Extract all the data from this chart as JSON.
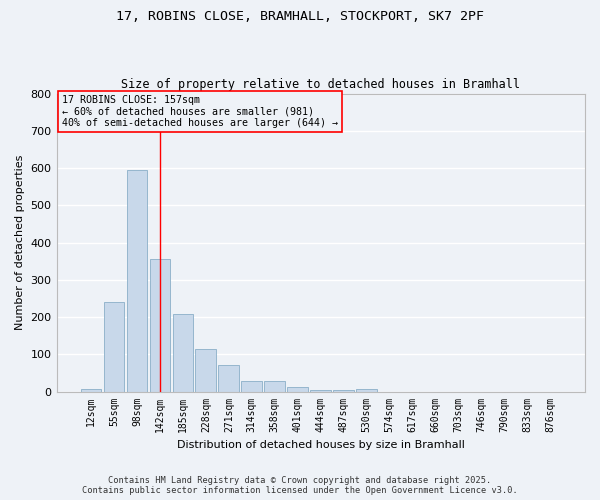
{
  "title_line1": "17, ROBINS CLOSE, BRAMHALL, STOCKPORT, SK7 2PF",
  "title_line2": "Size of property relative to detached houses in Bramhall",
  "categories": [
    "12sqm",
    "55sqm",
    "98sqm",
    "142sqm",
    "185sqm",
    "228sqm",
    "271sqm",
    "314sqm",
    "358sqm",
    "401sqm",
    "444sqm",
    "487sqm",
    "530sqm",
    "574sqm",
    "617sqm",
    "660sqm",
    "703sqm",
    "746sqm",
    "790sqm",
    "833sqm",
    "876sqm"
  ],
  "values": [
    8,
    240,
    595,
    355,
    207,
    115,
    70,
    28,
    27,
    13,
    5,
    5,
    7,
    0,
    0,
    0,
    0,
    0,
    0,
    0,
    0
  ],
  "bar_color": "#c8d8ea",
  "bar_edge_color": "#8aafc8",
  "ylabel": "Number of detached properties",
  "xlabel": "Distribution of detached houses by size in Bramhall",
  "ylim": [
    0,
    800
  ],
  "yticks": [
    0,
    100,
    200,
    300,
    400,
    500,
    600,
    700,
    800
  ],
  "annotation_title": "17 ROBINS CLOSE: 157sqm",
  "annotation_line2": "← 60% of detached houses are smaller (981)",
  "annotation_line3": "40% of semi-detached houses are larger (644) →",
  "vline_x_index": 3.0,
  "background_color": "#eef2f7",
  "grid_color": "#ffffff",
  "footer_line1": "Contains HM Land Registry data © Crown copyright and database right 2025.",
  "footer_line2": "Contains public sector information licensed under the Open Government Licence v3.0."
}
